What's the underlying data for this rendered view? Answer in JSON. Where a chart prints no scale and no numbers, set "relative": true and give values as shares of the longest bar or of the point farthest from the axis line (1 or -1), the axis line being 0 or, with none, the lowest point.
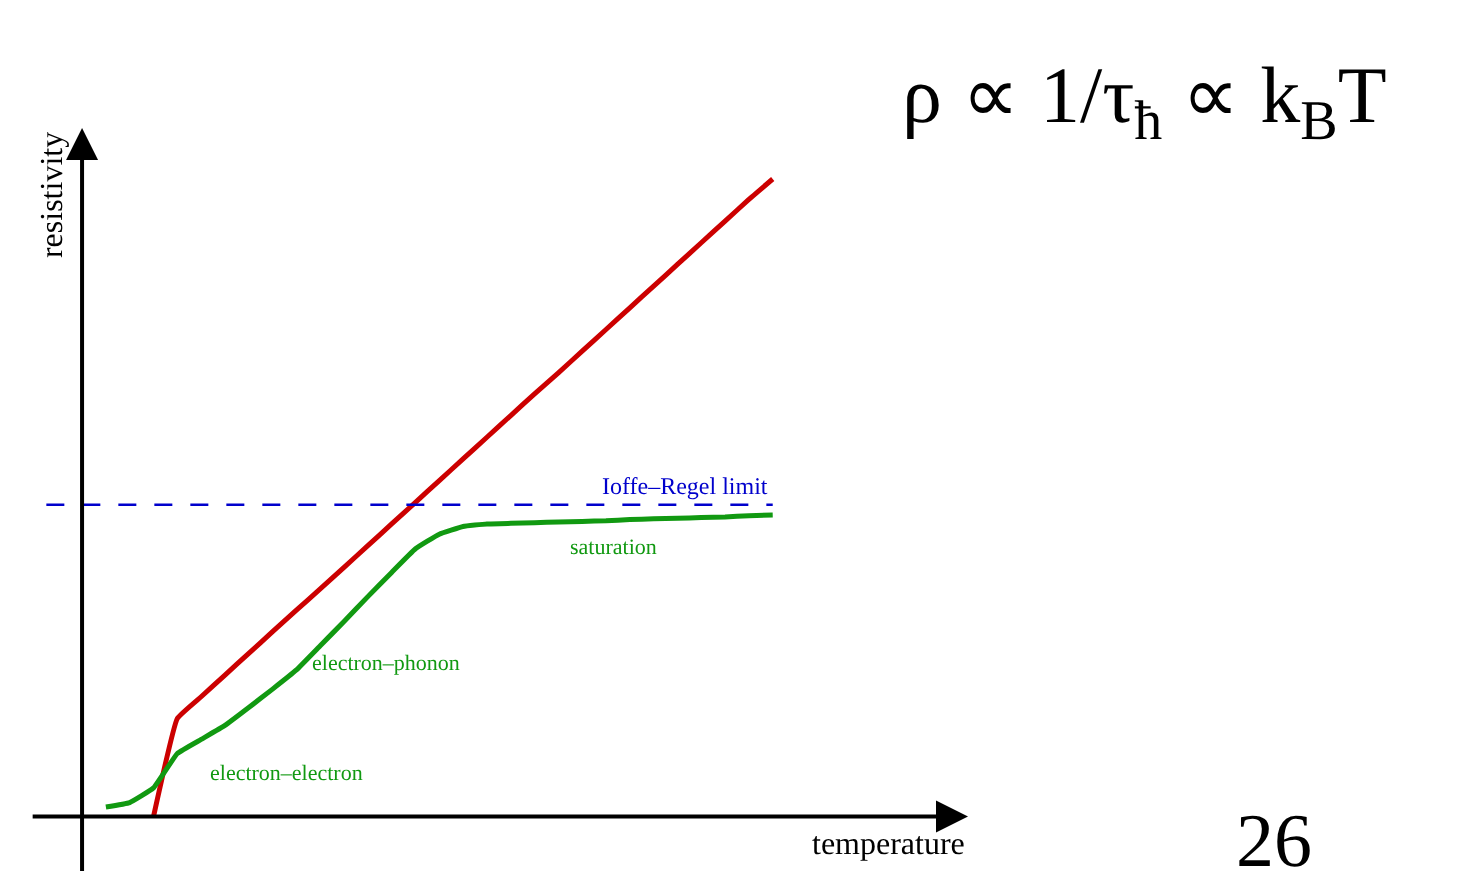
{
  "chart_data": {
    "type": "line",
    "relative": true,
    "xlabel": "temperature",
    "ylabel": "resistivity",
    "categories": [
      null,
      null,
      null,
      null,
      null,
      null,
      null,
      null,
      null,
      null,
      null,
      null,
      null,
      null,
      null,
      null,
      null,
      null,
      null,
      null,
      null,
      null,
      null,
      null,
      null,
      null,
      null,
      null,
      null,
      null
    ],
    "series": [
      {
        "color": "#cc0000",
        "values": [
          null,
          null,
          null,
          0,
          0.154,
          0.188,
          0.222,
          0.256,
          0.29,
          0.324,
          0.357,
          0.391,
          0.425,
          0.459,
          0.493,
          0.527,
          0.561,
          0.595,
          0.629,
          0.663,
          0.696,
          0.73,
          0.764,
          0.798,
          0.832,
          0.866,
          0.9,
          0.934,
          0.968,
          1.0
        ]
      },
      {
        "color": "#119911",
        "values": [
          null,
          0.015,
          0.022,
          0.045,
          0.099,
          0.121,
          0.143,
          0.171,
          0.2,
          0.23,
          0.268,
          0.306,
          0.345,
          0.383,
          0.42,
          0.443,
          0.455,
          0.459,
          0.46,
          0.461,
          0.462,
          0.463,
          0.464,
          0.466,
          0.467,
          0.468,
          0.469,
          0.47,
          0.472,
          0.473
        ]
      }
    ],
    "ref_lines": [
      {
        "axis": "y",
        "value": 0.489,
        "label": "Ioffe–Regel limit",
        "color": "#0000cc",
        "line_style": "dashed"
      }
    ],
    "annotations": [
      "saturation",
      "electron–phonon",
      "electron–electron",
      "ρ ∝ 1/τ$_{ħ}$ ∝ k$_{B}$T",
      "26"
    ]
  }
}
